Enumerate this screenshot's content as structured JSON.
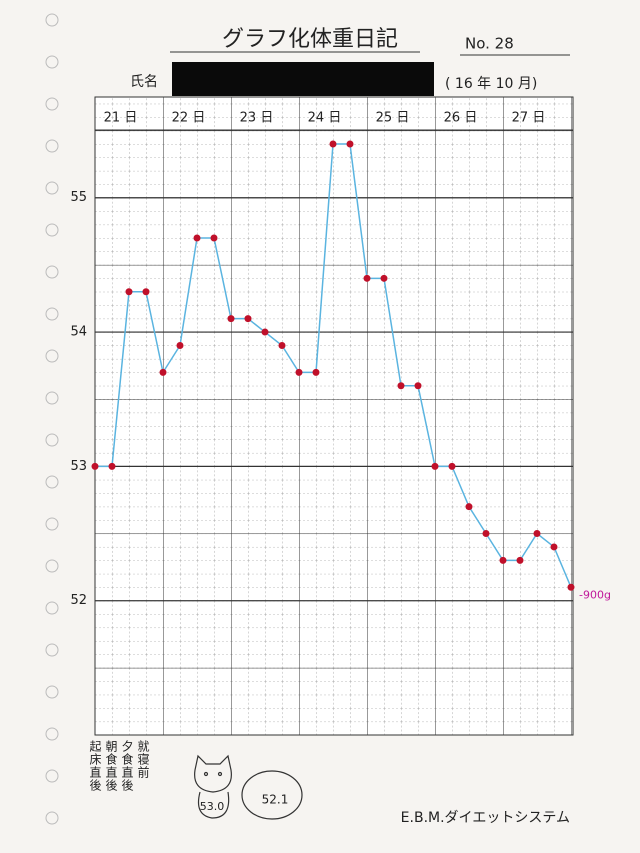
{
  "chart_data": {
    "type": "line",
    "title": "グラフ化体重日記",
    "number": "No. 28",
    "name_label": "氏名",
    "period": "( 16 年 10 月)",
    "x": [
      0,
      1,
      2,
      3,
      4,
      5,
      6,
      7,
      8,
      9,
      10,
      11,
      12,
      13,
      14,
      15,
      16,
      17,
      18,
      19,
      20,
      21,
      22,
      23,
      24,
      25,
      26,
      27,
      28
    ],
    "xlim": [
      0,
      28
    ],
    "xticks": [
      {
        "value": 1.5,
        "label": "21 日"
      },
      {
        "value": 5.5,
        "label": "22 日"
      },
      {
        "value": 9.5,
        "label": "23 日"
      },
      {
        "value": 13.5,
        "label": "24 日"
      },
      {
        "value": 17.5,
        "label": "25 日"
      },
      {
        "value": 21.5,
        "label": "26 日"
      },
      {
        "value": 25.5,
        "label": "27 日"
      }
    ],
    "ylim": [
      51,
      55.75
    ],
    "yticks": [
      52,
      53,
      54,
      55
    ],
    "series": [
      {
        "color": "#5ab4e0",
        "values": [
          53.0,
          53.0,
          54.3,
          54.3,
          53.7,
          53.9,
          54.7,
          54.7,
          54.1,
          54.1,
          54.0,
          53.9,
          53.7,
          53.7,
          55.4,
          55.4,
          54.4,
          54.4,
          53.6,
          53.6,
          53.0,
          53.0,
          52.7,
          52.5,
          52.3,
          52.3,
          52.5,
          52.4,
          52.1
        ]
      }
    ],
    "marker_color": "#c0102a",
    "annotation": "-900g",
    "row_labels": [
      "起床直後",
      "朝食直後",
      "夕食直後",
      "就寝前"
    ],
    "badge_start": "53.0",
    "badge_end": "52.1",
    "footer": "E.B.M.ダイエットシステム"
  }
}
